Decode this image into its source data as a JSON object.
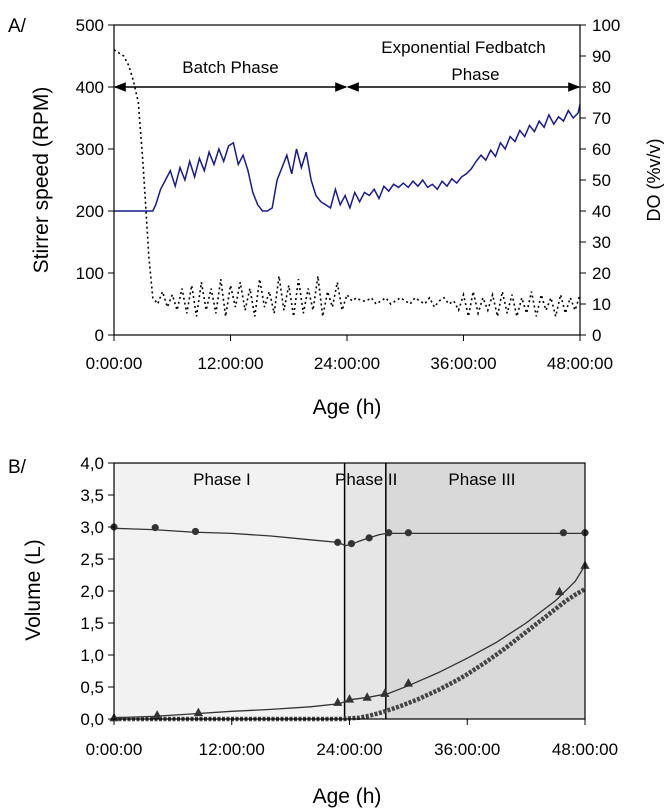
{
  "chart_data": [
    {
      "panel_label": "A/",
      "type": "line",
      "xlabel": "Age (h)",
      "ylabel": "Stirrer speed (RPM)",
      "y2label": "DO (%v/v)",
      "xlim": [
        0,
        48
      ],
      "ylim": [
        0,
        500
      ],
      "y2lim": [
        0,
        100
      ],
      "x_ticks": [
        0,
        12,
        24,
        36,
        48
      ],
      "x_tick_labels": [
        "0:00:00",
        "12:00:00",
        "24:00:00",
        "36:00:00",
        "48:00:00"
      ],
      "y_ticks": [
        0,
        100,
        200,
        300,
        400,
        500
      ],
      "y2_ticks": [
        0,
        10,
        20,
        30,
        40,
        50,
        60,
        70,
        80,
        90,
        100
      ],
      "grid": false,
      "annotations": [
        {
          "text": "Batch Phase",
          "x_from": 0,
          "x_to": 24,
          "y": 400
        },
        {
          "text_lines": [
            "Exponential Fedbatch",
            "Phase"
          ],
          "x_from": 24,
          "x_to": 48,
          "y": 400
        }
      ],
      "series": [
        {
          "axis": "left",
          "color": "#1a1a8c",
          "style": "solid",
          "x": [
            0,
            1,
            2,
            3,
            4,
            4.3,
            4.8,
            5.3,
            5.8,
            6.3,
            6.8,
            7.3,
            7.8,
            8.3,
            8.8,
            9.3,
            9.8,
            10.3,
            10.8,
            11.3,
            11.8,
            12.3,
            12.8,
            13.3,
            13.8,
            14.3,
            14.8,
            15.3,
            15.8,
            16.3,
            16.8,
            17.3,
            17.8,
            18.3,
            18.8,
            19.3,
            19.8,
            20.3,
            20.8,
            21.3,
            21.8,
            22.3,
            22.8,
            23.3,
            23.8,
            24.3,
            24.8,
            25.3,
            25.8,
            26.3,
            26.8,
            27.3,
            27.8,
            28.3,
            28.8,
            29.3,
            29.8,
            30.3,
            30.8,
            31.3,
            31.8,
            32.3,
            32.8,
            33.3,
            33.8,
            34.3,
            34.8,
            35.3,
            35.8,
            36.3,
            36.8,
            37.3,
            37.8,
            38.3,
            38.8,
            39.3,
            39.8,
            40.3,
            40.8,
            41.3,
            41.8,
            42.3,
            42.8,
            43.3,
            43.8,
            44.3,
            44.8,
            45.3,
            45.8,
            46.3,
            46.8,
            47.3,
            47.8,
            48
          ],
          "y": [
            200,
            200,
            200,
            200,
            200,
            210,
            235,
            250,
            265,
            240,
            270,
            250,
            280,
            255,
            285,
            265,
            295,
            275,
            300,
            280,
            305,
            310,
            275,
            290,
            265,
            230,
            210,
            200,
            200,
            205,
            250,
            270,
            290,
            260,
            300,
            270,
            295,
            250,
            225,
            215,
            210,
            205,
            235,
            210,
            225,
            205,
            230,
            215,
            230,
            225,
            235,
            220,
            240,
            232,
            243,
            238,
            245,
            238,
            248,
            240,
            250,
            238,
            243,
            235,
            248,
            240,
            252,
            245,
            255,
            260,
            268,
            280,
            290,
            282,
            298,
            288,
            310,
            300,
            320,
            312,
            330,
            320,
            338,
            328,
            345,
            335,
            355,
            340,
            352,
            345,
            362,
            350,
            358,
            372
          ]
        },
        {
          "axis": "right",
          "color": "#000000",
          "style": "dotted",
          "x": [
            0,
            0.5,
            1,
            1.5,
            2,
            2.5,
            3,
            3.3,
            3.6,
            4,
            4.5,
            5,
            5.5,
            6,
            6.5,
            7,
            7.5,
            8,
            8.5,
            9,
            9.5,
            10,
            10.5,
            11,
            11.5,
            12,
            12.5,
            13,
            13.5,
            14,
            14.5,
            15,
            15.5,
            16,
            16.5,
            17,
            17.5,
            18,
            18.5,
            19,
            19.5,
            20,
            20.5,
            21,
            21.5,
            22,
            22.5,
            23,
            23.5,
            24,
            24.5,
            25,
            25.5,
            26,
            26.5,
            27,
            27.5,
            28,
            28.5,
            29,
            29.5,
            30,
            30.5,
            31,
            31.5,
            32,
            32.5,
            33,
            33.5,
            34,
            34.5,
            35,
            35.5,
            36,
            36.5,
            37,
            37.5,
            38,
            38.5,
            39,
            39.5,
            40,
            40.5,
            41,
            41.5,
            42,
            42.5,
            43,
            43.5,
            44,
            44.5,
            45,
            45.5,
            46,
            46.5,
            47,
            47.5,
            48
          ],
          "y": [
            92,
            91,
            90,
            87,
            82,
            75,
            55,
            40,
            25,
            12,
            10,
            14,
            9,
            13,
            8,
            15,
            7,
            16,
            6,
            17,
            8,
            15,
            7,
            18,
            6,
            16,
            9,
            17,
            8,
            15,
            6,
            18,
            9,
            14,
            7,
            19,
            8,
            16,
            6,
            18,
            7,
            15,
            8,
            19,
            6,
            14,
            9,
            17,
            8,
            13,
            11,
            12,
            11,
            11,
            12,
            10,
            11,
            12,
            10,
            11,
            12,
            11,
            10,
            12,
            11,
            10,
            12,
            9,
            11,
            12,
            10,
            11,
            8,
            13,
            6,
            14,
            7,
            12,
            8,
            13,
            6,
            14,
            7,
            13,
            6,
            12,
            7,
            14,
            6,
            13,
            8,
            12,
            6,
            13,
            7,
            12,
            8,
            13
          ]
        }
      ]
    },
    {
      "panel_label": "B/",
      "type": "line",
      "xlabel": "Age (h)",
      "ylabel": "Volume (L)",
      "xlim": [
        0,
        48
      ],
      "ylim": [
        0,
        4
      ],
      "x_ticks": [
        0,
        12,
        24,
        36,
        48
      ],
      "x_tick_labels": [
        "0:00:00",
        "12:00:00",
        "24:00:00",
        "36:00:00",
        "48:00:00"
      ],
      "y_ticks": [
        0,
        0.5,
        1,
        1.5,
        2,
        2.5,
        3,
        3.5,
        4
      ],
      "y_tick_labels": [
        "0,0",
        "0,5",
        "1,0",
        "1,5",
        "2,0",
        "2,5",
        "3,0",
        "3,5",
        "4,0"
      ],
      "grid": false,
      "phases": [
        {
          "label": "Phase I",
          "x_from": 0,
          "x_to": 23.5,
          "fill": "#f2f2f2"
        },
        {
          "label": "Phase II",
          "x_from": 23.5,
          "x_to": 27.7,
          "fill": "#e6e6e6"
        },
        {
          "label": "Phase III",
          "x_from": 27.7,
          "x_to": 48,
          "fill": "#d9d9d9"
        }
      ],
      "series": [
        {
          "marker": "circle",
          "color": "#333333",
          "line_x": [
            0,
            4,
            8,
            12,
            16,
            20,
            22.8,
            23.6,
            24.2,
            25,
            26,
            27,
            27.8,
            28,
            30,
            34,
            38,
            42,
            46,
            48
          ],
          "line_y": [
            2.98,
            2.96,
            2.92,
            2.9,
            2.86,
            2.8,
            2.76,
            2.71,
            2.73,
            2.78,
            2.83,
            2.88,
            2.9,
            2.9,
            2.9,
            2.9,
            2.9,
            2.9,
            2.9,
            2.9
          ],
          "points_x": [
            0,
            4.2,
            8.3,
            22.8,
            24.2,
            26,
            28,
            30,
            45.8,
            48
          ],
          "points_y": [
            3.0,
            2.99,
            2.93,
            2.76,
            2.74,
            2.83,
            2.91,
            2.91,
            2.91,
            2.91
          ]
        },
        {
          "marker": "triangle",
          "color": "#333333",
          "line_x": [
            0,
            4,
            8,
            12,
            16,
            20,
            23,
            24,
            26,
            28,
            30,
            33,
            36,
            39,
            42,
            45,
            47,
            48
          ],
          "line_y": [
            0.02,
            0.04,
            0.08,
            0.12,
            0.15,
            0.19,
            0.24,
            0.3,
            0.34,
            0.4,
            0.52,
            0.72,
            0.95,
            1.2,
            1.5,
            1.85,
            2.15,
            2.4
          ],
          "points_x": [
            0,
            4.4,
            8.6,
            22.8,
            24,
            25.8,
            27.6,
            30,
            45.4,
            48
          ],
          "points_y": [
            0.02,
            0.06,
            0.1,
            0.26,
            0.31,
            0.34,
            0.4,
            0.56,
            1.99,
            2.4
          ]
        },
        {
          "marker": "square-dense",
          "color": "#444444",
          "line_x": [
            0,
            23.5,
            24,
            25,
            26,
            27,
            28,
            29,
            30,
            31,
            32,
            33,
            34,
            35,
            36,
            37,
            38,
            39,
            40,
            41,
            42,
            43,
            44,
            45,
            46,
            47,
            48
          ],
          "line_y": [
            0,
            0,
            0.01,
            0.02,
            0.05,
            0.09,
            0.14,
            0.19,
            0.25,
            0.31,
            0.38,
            0.45,
            0.53,
            0.61,
            0.7,
            0.8,
            0.9,
            1.01,
            1.12,
            1.24,
            1.36,
            1.48,
            1.6,
            1.72,
            1.84,
            1.94,
            2.03
          ]
        }
      ]
    }
  ]
}
